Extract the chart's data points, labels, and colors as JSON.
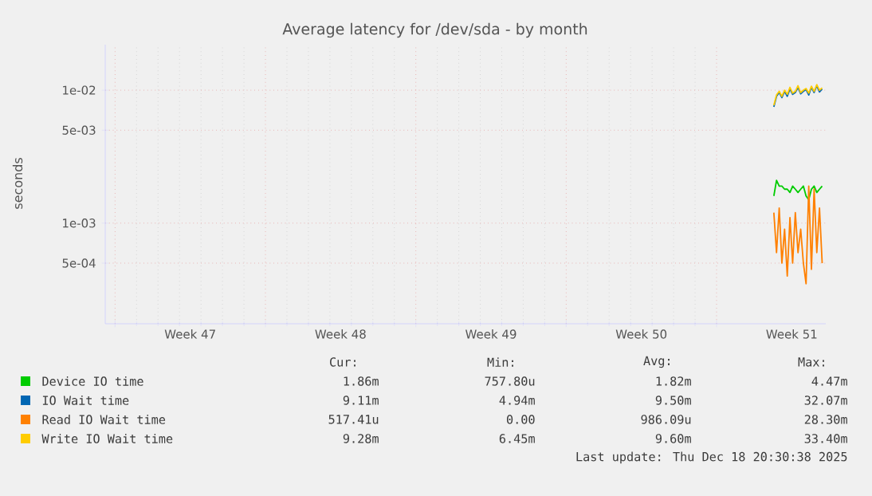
{
  "chart_data": {
    "type": "line",
    "title": "Average latency for /dev/sda - by month",
    "ylabel": "seconds",
    "log": "y",
    "grid": true,
    "legend": "bottom",
    "xlim": [
      "2025-11-16T13:00",
      "2025-12-20T02:00"
    ],
    "xticks": [
      {
        "value": "2025-11-17",
        "label": null
      },
      {
        "value": "2025-11-20T12:00",
        "label": "Week 47"
      },
      {
        "value": "2025-11-24",
        "label": null
      },
      {
        "value": "2025-11-27T12:00",
        "label": "Week 48"
      },
      {
        "value": "2025-12-01",
        "label": null
      },
      {
        "value": "2025-12-04T12:00",
        "label": "Week 49"
      },
      {
        "value": "2025-12-08",
        "label": null
      },
      {
        "value": "2025-12-11T12:00",
        "label": "Week 50"
      },
      {
        "value": "2025-12-15",
        "label": null
      },
      {
        "value": "2025-12-18T12:00",
        "label": "Week 51"
      }
    ],
    "ylim": [
      0.000175,
      0.022
    ],
    "yticks": [
      {
        "value": 0.0005,
        "label": "5e-04"
      },
      {
        "value": 0.001,
        "label": "1e-03"
      },
      {
        "value": 0.005,
        "label": "5e-03"
      },
      {
        "value": 0.01,
        "label": "1e-02"
      }
    ],
    "x": [
      "2025-12-17T16:00",
      "2025-12-17T19:00",
      "2025-12-17T22:00",
      "2025-12-18T01:00",
      "2025-12-18T04:00",
      "2025-12-18T07:00",
      "2025-12-18T10:00",
      "2025-12-18T13:00",
      "2025-12-18T16:00",
      "2025-12-18T19:00",
      "2025-12-18T22:00",
      "2025-12-19T01:00",
      "2025-12-19T04:00",
      "2025-12-19T07:00",
      "2025-12-19T10:00",
      "2025-12-19T13:00",
      "2025-12-19T16:00",
      "2025-12-19T19:00",
      "2025-12-19T22:00"
    ],
    "series": [
      {
        "name": "Device IO time",
        "color": "#00cc00",
        "values": [
          0.0016,
          0.0021,
          0.0019,
          0.0019,
          0.0018,
          0.0018,
          0.0017,
          0.0019,
          0.0018,
          0.0017,
          0.0018,
          0.0019,
          0.0016,
          0.0015,
          0.0018,
          0.0019,
          0.0017,
          0.0018,
          0.0019
        ]
      },
      {
        "name": "IO Wait time",
        "color": "#0066b3",
        "values": [
          0.0075,
          0.009,
          0.0096,
          0.0088,
          0.0098,
          0.009,
          0.0102,
          0.0093,
          0.0096,
          0.0105,
          0.0094,
          0.0098,
          0.0101,
          0.0092,
          0.0105,
          0.0096,
          0.0108,
          0.0097,
          0.0102
        ]
      },
      {
        "name": "Read IO Wait time",
        "color": "#ff8000",
        "values": [
          0.0012,
          0.0006,
          0.0013,
          0.0005,
          0.0009,
          0.0004,
          0.0011,
          0.0005,
          0.0012,
          0.0006,
          0.0009,
          0.0005,
          0.00035,
          0.0019,
          0.00045,
          0.0018,
          0.0006,
          0.0013,
          0.0005
        ]
      },
      {
        "name": "Write IO Wait time",
        "color": "#ffcc00",
        "values": [
          0.0077,
          0.0092,
          0.0098,
          0.009,
          0.01,
          0.0093,
          0.0105,
          0.0095,
          0.0098,
          0.0108,
          0.0096,
          0.01,
          0.0103,
          0.0095,
          0.0107,
          0.0098,
          0.011,
          0.01,
          0.0104
        ]
      }
    ],
    "annotations": [
      "Cur:",
      "Min:",
      "Avg:",
      "Max:",
      "1.86m",
      "757.80u",
      "1.82m",
      "4.47m",
      "9.11m",
      "4.94m",
      "9.50m",
      "32.07m",
      "517.41u",
      "0.00",
      "986.09u",
      "28.30m",
      "9.28m",
      "6.45m",
      "9.60m",
      "33.40m",
      "Last update: Thu Dec 18 20:30:38 2025"
    ]
  }
}
